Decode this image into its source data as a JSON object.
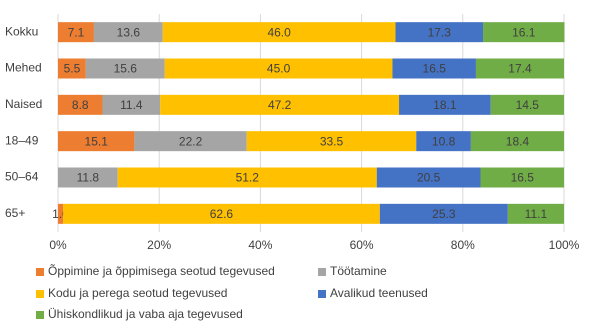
{
  "chart_data": {
    "type": "stacked-barh",
    "categories": [
      "Kokku",
      "Mehed",
      "Naised",
      "18–49",
      "50–64",
      "65+"
    ],
    "series": [
      {
        "name": "Õppimine ja õppimisega seotud tegevused",
        "color": "#ED7D31",
        "values": [
          7.1,
          5.5,
          8.8,
          15.1,
          null,
          1.0
        ],
        "value_labels": [
          "7.1",
          "5.5",
          "8.8",
          "15.1",
          null,
          "1.0"
        ]
      },
      {
        "name": "Töötamine",
        "color": "#A5A5A5",
        "values": [
          13.6,
          15.6,
          11.4,
          22.2,
          11.8,
          null
        ],
        "value_labels": [
          "13.6",
          "15.6",
          "11.4",
          "22.2",
          "11.8",
          null
        ]
      },
      {
        "name": "Kodu ja perega seotud tegevused",
        "color": "#FFC000",
        "values": [
          46.0,
          45.0,
          47.2,
          33.5,
          51.2,
          62.6
        ],
        "value_labels": [
          "46.0",
          "45.0",
          "47.2",
          "33.5",
          "51.2",
          "62.6"
        ]
      },
      {
        "name": "Avalikud teenused",
        "color": "#4472C4",
        "values": [
          17.3,
          16.5,
          18.1,
          10.8,
          20.5,
          25.3
        ],
        "value_labels": [
          "17.3",
          "16.5",
          "18.1",
          "10.8",
          "20.5",
          "25.3"
        ]
      },
      {
        "name": "Ühiskondlikud ja vaba aja tegevused",
        "color": "#70AD47",
        "values": [
          16.1,
          17.4,
          14.5,
          18.4,
          16.5,
          11.1
        ],
        "value_labels": [
          "16.1",
          "17.4",
          "14.5",
          "18.4",
          "16.5",
          "11.1"
        ]
      }
    ],
    "xlim": [
      0,
      100
    ],
    "xticks": [
      {
        "value": 0,
        "label": "0%"
      },
      {
        "value": 20,
        "label": "20%"
      },
      {
        "value": 40,
        "label": "40%"
      },
      {
        "value": 60,
        "label": "60%"
      },
      {
        "value": 80,
        "label": "80%"
      },
      {
        "value": 100,
        "label": "100%"
      }
    ],
    "grid": true
  }
}
